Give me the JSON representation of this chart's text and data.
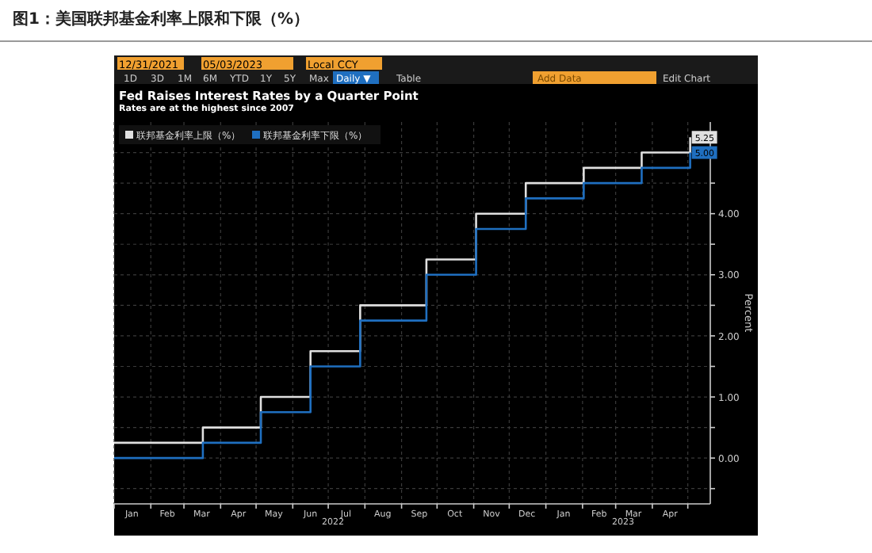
{
  "chart_data": {
    "type": "step",
    "title": "图1：美国联邦基金利率上限和下限（%）",
    "subtitle": "Fed Raises Interest Rates by a Quarter Point",
    "annotations": [
      "Rates are at the highest since 2007",
      "12/31/2021",
      "05/03/2023",
      "Local CCY",
      "1D",
      "3D",
      "1M",
      "6M",
      "YTD",
      "1Y",
      "5Y",
      "Max",
      "Daily ▼",
      "Table",
      "Add Data",
      "Edit Chart",
      "2022",
      "2023"
    ],
    "ylabel": "Percent",
    "series": [
      {
        "name": "联邦基金利率上限（%）",
        "color": "#e0e0e0",
        "x": [
          "2022-01-01",
          "2022-03-17",
          "2022-05-05",
          "2022-06-16",
          "2022-07-28",
          "2022-09-22",
          "2022-11-03",
          "2022-12-15",
          "2023-02-02",
          "2023-03-23",
          "2023-05-03"
        ],
        "values": [
          0.25,
          0.5,
          1.0,
          1.75,
          2.5,
          3.25,
          4.0,
          4.5,
          4.75,
          5.0,
          5.25
        ],
        "value_labels": [
          null,
          null,
          null,
          null,
          null,
          null,
          null,
          null,
          null,
          null,
          "5.25"
        ]
      },
      {
        "name": "联邦基金利率下限（%）",
        "color": "#1f6fc0",
        "x": [
          "2022-01-01",
          "2022-03-17",
          "2022-05-05",
          "2022-06-16",
          "2022-07-28",
          "2022-09-22",
          "2022-11-03",
          "2022-12-15",
          "2023-02-02",
          "2023-03-23",
          "2023-05-03"
        ],
        "values": [
          0.0,
          0.25,
          0.75,
          1.5,
          2.25,
          3.0,
          3.75,
          4.25,
          4.5,
          4.75,
          5.0
        ],
        "value_labels": [
          null,
          null,
          null,
          null,
          null,
          null,
          null,
          null,
          null,
          null,
          "5.00"
        ]
      }
    ],
    "xlim": [
      "2022-01-01",
      "2023-05-20"
    ],
    "xticks": [
      {
        "value": "2022-01-01",
        "label": null
      },
      {
        "value": "2022-01-16",
        "label": "Jan"
      },
      {
        "value": "2022-02-01",
        "label": null
      },
      {
        "value": "2022-02-15",
        "label": "Feb"
      },
      {
        "value": "2022-03-01",
        "label": null
      },
      {
        "value": "2022-03-16",
        "label": "Mar"
      },
      {
        "value": "2022-04-01",
        "label": null
      },
      {
        "value": "2022-04-16",
        "label": "Apr"
      },
      {
        "value": "2022-05-01",
        "label": null
      },
      {
        "value": "2022-05-16",
        "label": "May"
      },
      {
        "value": "2022-06-01",
        "label": null
      },
      {
        "value": "2022-06-16",
        "label": "Jun"
      },
      {
        "value": "2022-07-01",
        "label": null
      },
      {
        "value": "2022-07-16",
        "label": "Jul"
      },
      {
        "value": "2022-08-01",
        "label": null
      },
      {
        "value": "2022-08-16",
        "label": "Aug"
      },
      {
        "value": "2022-09-01",
        "label": null
      },
      {
        "value": "2022-09-16",
        "label": "Sep"
      },
      {
        "value": "2022-10-01",
        "label": null
      },
      {
        "value": "2022-10-16",
        "label": "Oct"
      },
      {
        "value": "2022-11-01",
        "label": null
      },
      {
        "value": "2022-11-16",
        "label": "Nov"
      },
      {
        "value": "2022-12-01",
        "label": null
      },
      {
        "value": "2022-12-16",
        "label": "Dec"
      },
      {
        "value": "2023-01-01",
        "label": null
      },
      {
        "value": "2023-01-16",
        "label": "Jan"
      },
      {
        "value": "2023-02-01",
        "label": null
      },
      {
        "value": "2023-02-15",
        "label": "Feb"
      },
      {
        "value": "2023-03-01",
        "label": null
      },
      {
        "value": "2023-03-16",
        "label": "Mar"
      },
      {
        "value": "2023-04-01",
        "label": null
      },
      {
        "value": "2023-04-16",
        "label": "Apr"
      },
      {
        "value": "2023-05-01",
        "label": null
      }
    ],
    "ylim": [
      -0.75,
      5.5
    ],
    "yticks": [
      {
        "value": -0.5,
        "label": null
      },
      {
        "value": 0,
        "label": "0.00"
      },
      {
        "value": 0.5,
        "label": null
      },
      {
        "value": 1,
        "label": "1.00"
      },
      {
        "value": 1.5,
        "label": null
      },
      {
        "value": 2,
        "label": "2.00"
      },
      {
        "value": 2.5,
        "label": null
      },
      {
        "value": 3,
        "label": "3.00"
      },
      {
        "value": 3.5,
        "label": null
      },
      {
        "value": 4,
        "label": "4.00"
      },
      {
        "value": 4.5,
        "label": null
      },
      {
        "value": 5,
        "label": null
      }
    ],
    "grid": true,
    "legend": "top left",
    "line_style": "solid"
  }
}
